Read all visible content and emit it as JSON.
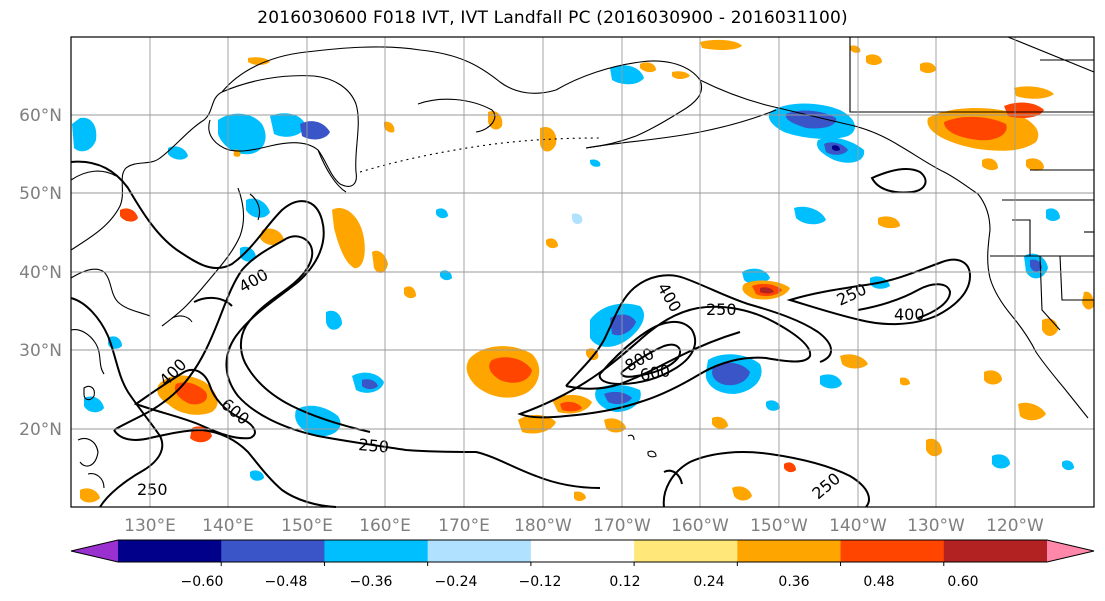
{
  "title": "2016030600 F018 IVT, IVT Landfall PC (2016030900 - 2016031100)",
  "chart_data": {
    "type": "map",
    "lat_ticks": [
      "60°N",
      "50°N",
      "40°N",
      "30°N",
      "20°N"
    ],
    "lon_ticks": [
      "130°E",
      "140°E",
      "150°E",
      "160°E",
      "170°E",
      "180°W",
      "170°W",
      "160°W",
      "150°W",
      "140°W",
      "130°W",
      "120°W"
    ],
    "contour_labels": [
      "400",
      "250",
      "250",
      "250",
      "400",
      "400",
      "800",
      "600",
      "250",
      "400",
      "400",
      "600",
      "250",
      "250",
      "250"
    ],
    "colorbar": {
      "colors": [
        "#9b30d0",
        "#00008b",
        "#3a55c8",
        "#00bfff",
        "#b0e2ff",
        "#ffffff",
        "#ffe77a",
        "#ffa500",
        "#ff4500",
        "#b22222",
        "#ff88aa"
      ],
      "tick_labels": [
        "−0.60",
        "−0.48",
        "−0.36",
        "−0.24",
        "−0.12",
        "0.12",
        "0.24",
        "0.36",
        "0.48",
        "0.60"
      ]
    }
  }
}
